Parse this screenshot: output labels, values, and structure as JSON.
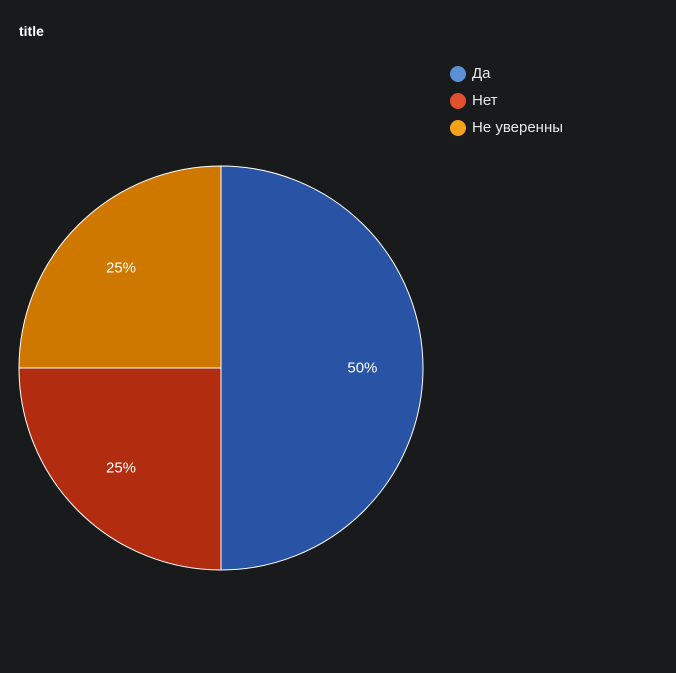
{
  "chart_data": {
    "type": "pie",
    "title": "title",
    "categories": [
      "Да",
      "Нет",
      "Не уверенны"
    ],
    "values": [
      50,
      25,
      25
    ],
    "value_labels": [
      "50%",
      "25%",
      "25%"
    ],
    "slice_colors": [
      "#2953a5",
      "#b22d10",
      "#ce7800"
    ],
    "legend_colors": [
      "#5b90d6",
      "#e2502e",
      "#f5a21b"
    ],
    "legend": "top-right"
  }
}
